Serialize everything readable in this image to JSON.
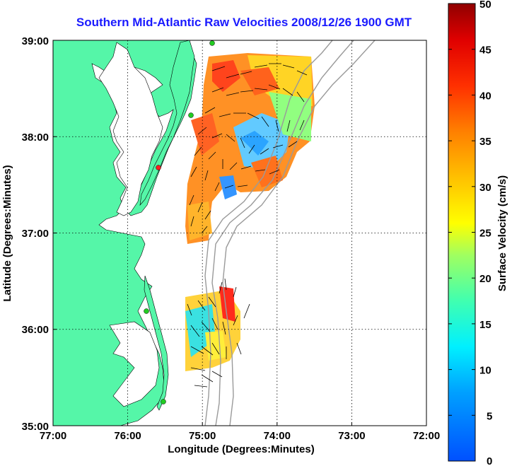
{
  "title": "Southern Mid-Atlantic Raw Velocities 2008/12/26 1900 GMT",
  "axes": {
    "x_label": "Longitude (Degrees:Minutes)",
    "y_label": "Latitude (Degrees:Minutes)",
    "x_ticks": [
      "77:00",
      "76:00",
      "75:00",
      "74:00",
      "73:00",
      "72:00"
    ],
    "y_ticks": [
      "39:00",
      "38:00",
      "37:00",
      "36:00",
      "35:00"
    ]
  },
  "colorbar": {
    "label": "Surface Velocity (cm/s)",
    "ticks": [
      "50",
      "45",
      "40",
      "35",
      "30",
      "25",
      "20",
      "15",
      "10",
      "5",
      "0"
    ],
    "min": 0,
    "max": 50
  },
  "colors": {
    "land": "#55f6a8",
    "water": "#ffffff",
    "title": "#1a1aff",
    "station": "#22cc22",
    "station_alt": "#ff2020",
    "bathymetry": "#9a9a9a"
  }
}
